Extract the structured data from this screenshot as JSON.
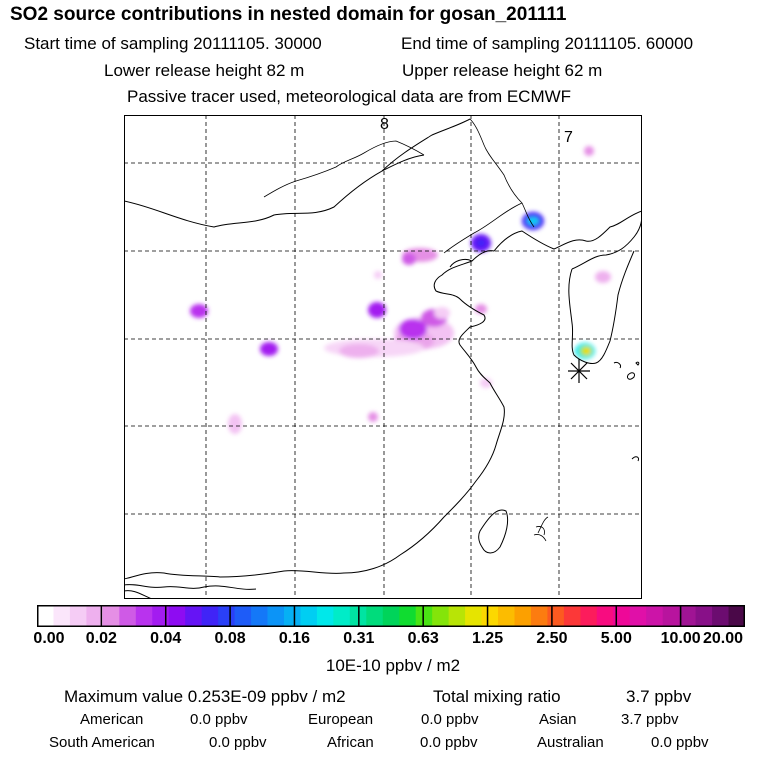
{
  "header": {
    "title": "SO2 source contributions in nested domain for gosan_201111",
    "start_time": "Start time of sampling 20111105. 30000",
    "end_time": "End time of sampling 20111105. 60000",
    "lower_height": "Lower release height   82 m",
    "upper_height": "Upper release height   62 m",
    "tracer_note": "Passive tracer used, meteorological data are from ECMWF"
  },
  "map": {
    "day_labels": [
      "8",
      "7"
    ],
    "release_site": "gosan"
  },
  "colorbar": {
    "ticks": [
      "0.00",
      "0.02",
      "0.04",
      "0.08",
      "0.16",
      "0.31",
      "0.63",
      "1.25",
      "2.50",
      "5.00",
      "10.00",
      "20.00"
    ],
    "unit": "10E-10 ppbv / m2",
    "colors": [
      "#ffffff",
      "#fbe6fb",
      "#f5ccf5",
      "#eeb0ee",
      "#e58fe5",
      "#cf5ae6",
      "#b933ee",
      "#a31cf0",
      "#8e0cf2",
      "#6614f5",
      "#4024f7",
      "#2a40f8",
      "#1e5cf8",
      "#1478f8",
      "#0c94f7",
      "#06b0f4",
      "#00cef2",
      "#00e8ea",
      "#00ecc8",
      "#00e4a2",
      "#00dc7c",
      "#00d45a",
      "#10dc30",
      "#4ae414",
      "#84e40a",
      "#b8e406",
      "#e6e400",
      "#fcd800",
      "#fcbc00",
      "#fca000",
      "#fc7c10",
      "#fc5a20",
      "#fc3838",
      "#fc1c5c",
      "#f80c80",
      "#ee0898",
      "#e010a8",
      "#cc14a8",
      "#b8149e",
      "#a01494",
      "#881088",
      "#6c0c70",
      "#4a0848"
    ]
  },
  "summary": {
    "max_label": "Maximum value  0.253E-09 ppbv / m2",
    "total_label": "Total mixing ratio",
    "total_value": "3.7 ppbv",
    "regions": [
      {
        "name": "American",
        "value": "0.0 ppbv"
      },
      {
        "name": "European",
        "value": "0.0 ppbv"
      },
      {
        "name": "Asian",
        "value": "3.7 ppbv"
      },
      {
        "name": "South American",
        "value": "0.0 ppbv"
      },
      {
        "name": "African",
        "value": "0.0 ppbv"
      },
      {
        "name": "Australian",
        "value": "0.0 ppbv"
      }
    ]
  }
}
